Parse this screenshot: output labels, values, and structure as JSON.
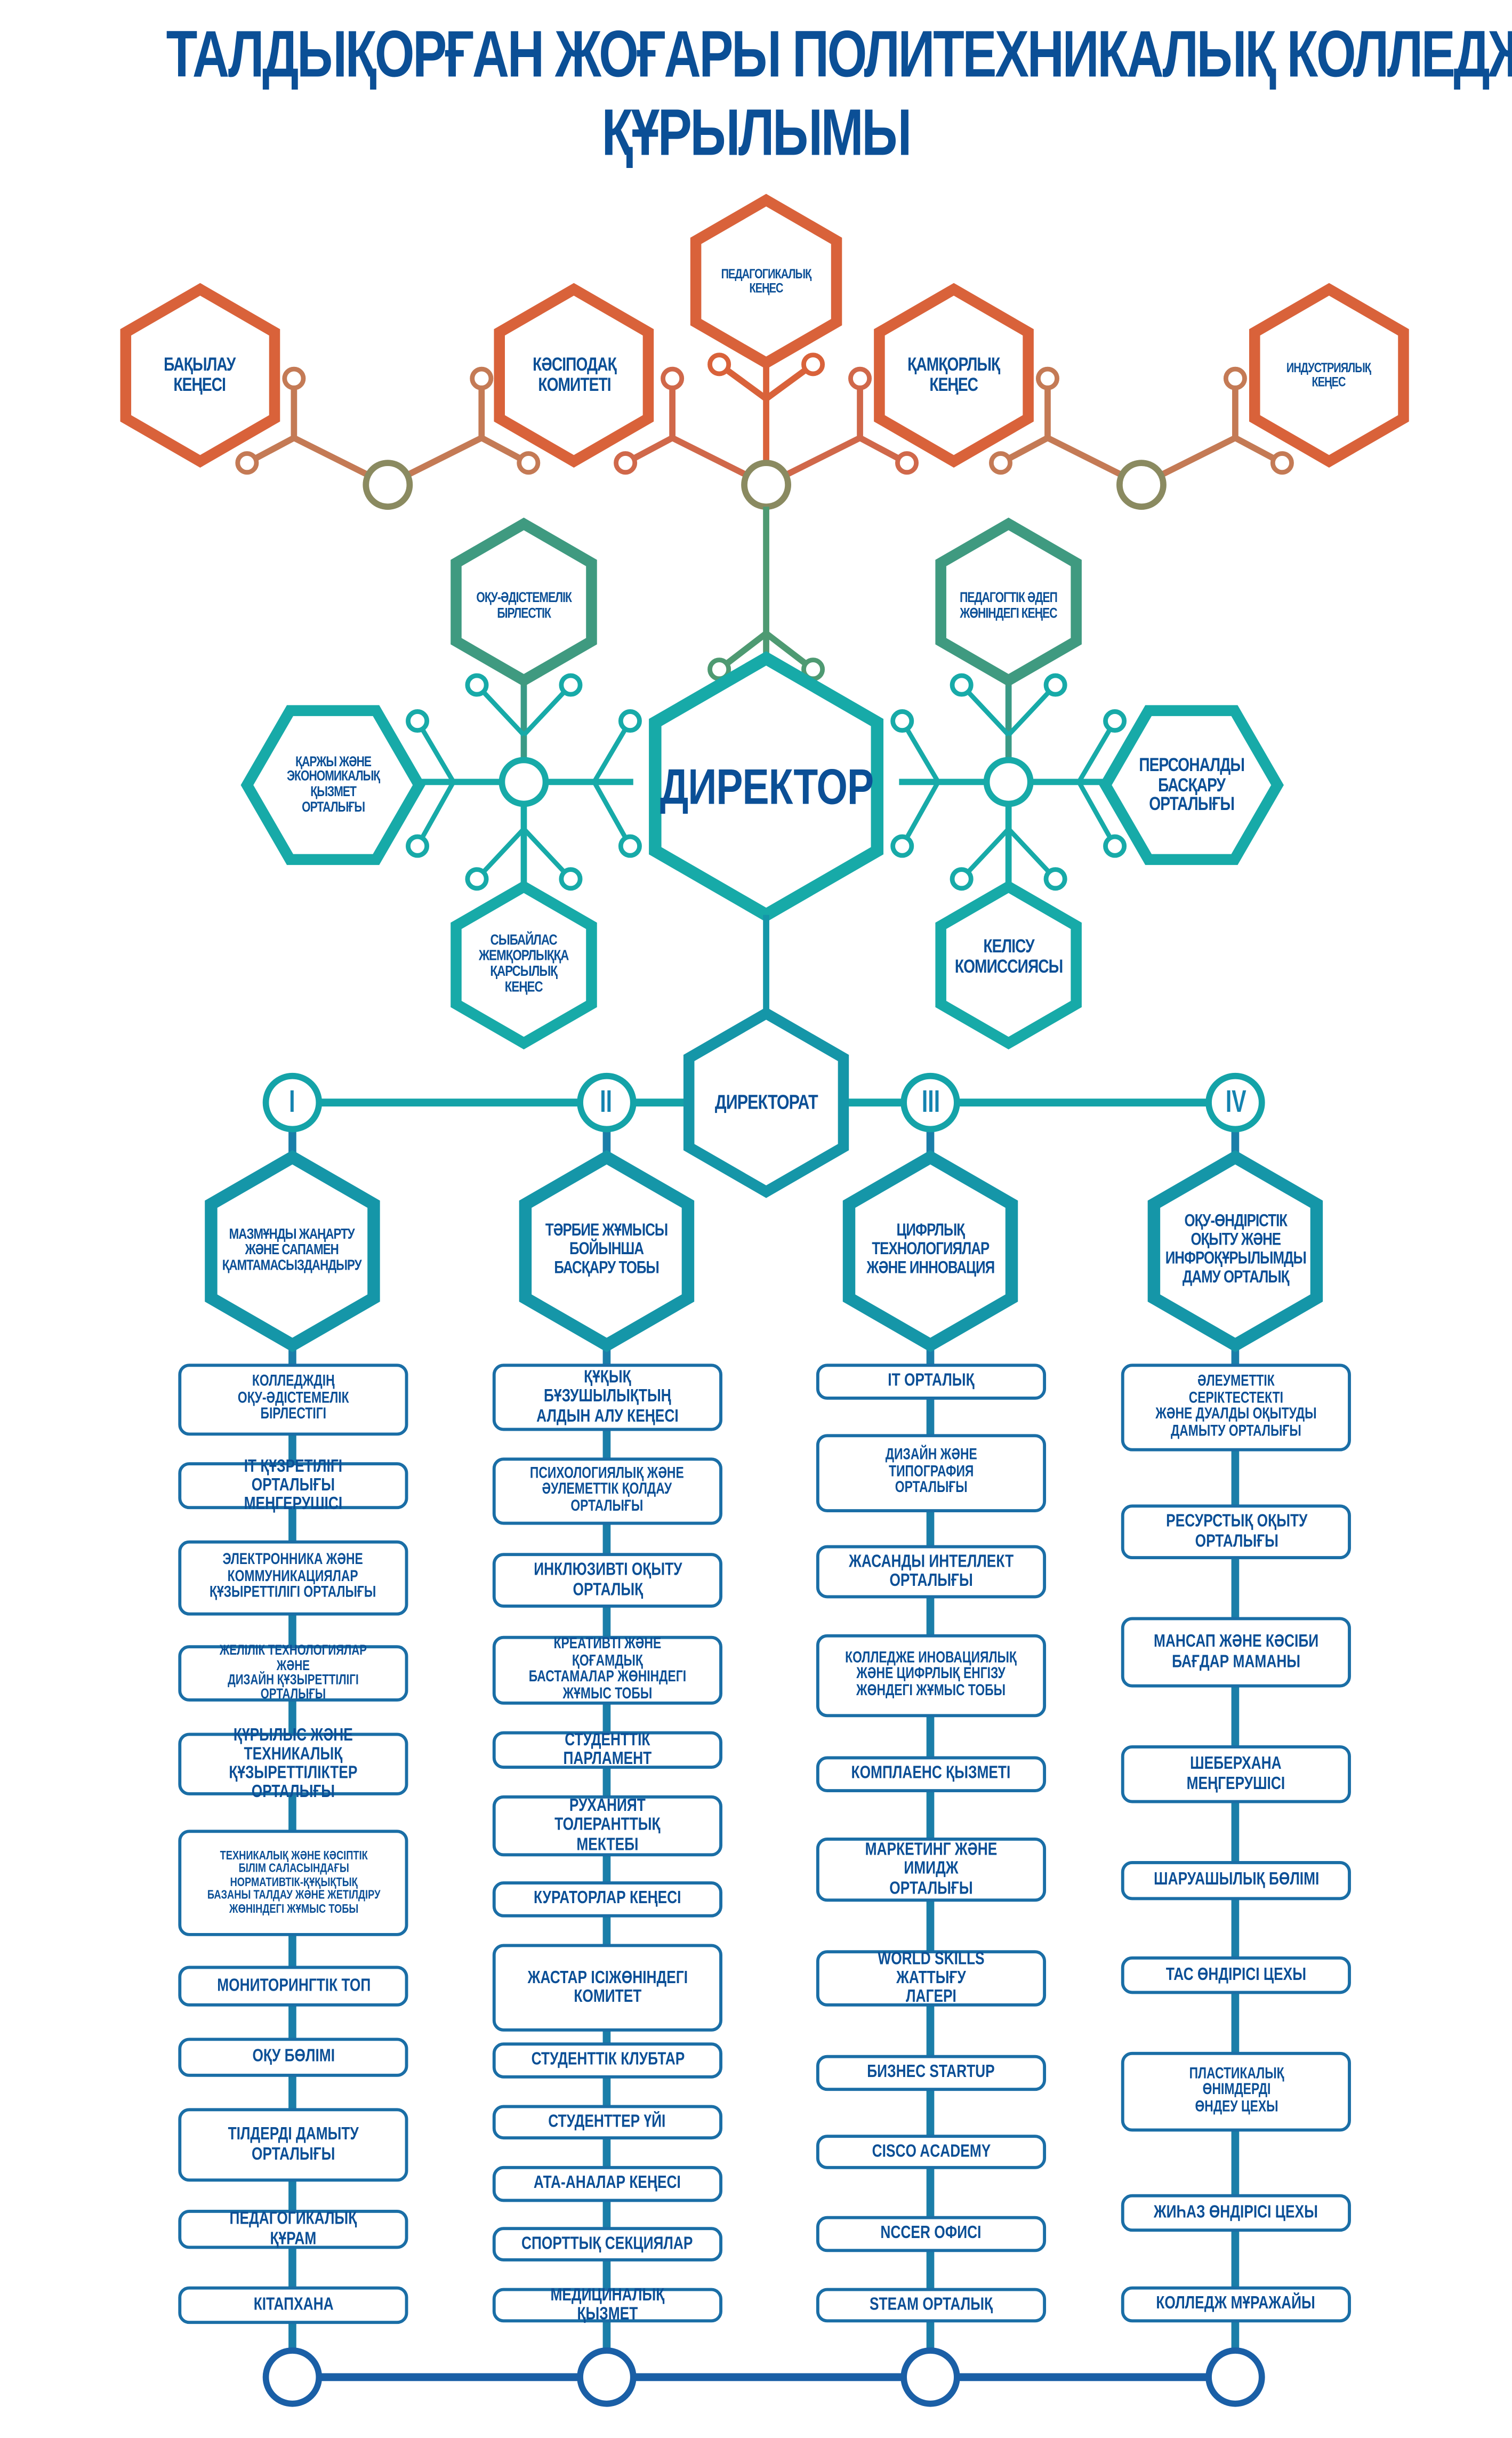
{
  "title": {
    "line1": "ТАЛДЫҚОРҒАН ЖОҒАРЫ ПОЛИТЕХНИКАЛЫҚ КОЛЛЕДЖІ",
    "line2": "ҚҰРЫЛЫМЫ"
  },
  "colors": {
    "title": "#0b4f96",
    "orange": "#d9623a",
    "green": "#4e9a72",
    "teal": "#17aaa8",
    "blue": "#1a6ea6"
  },
  "top_councils": [
    "БАҚЫЛАУ\nКЕҢЕСІ",
    "КӘСІПОДАҚ\nКОМИТЕТІ",
    "ПЕДАГОГИКАЛЫҚ\nКЕҢЕС",
    "ҚАМҚОРЛЫҚ\nКЕҢЕС",
    "ИНДУСТРИЯЛЫҚ\nКЕҢЕС"
  ],
  "director": "ДИРЕКТОР",
  "left_units": [
    "ОҚУ-ӘДІСТЕМЕЛІК\nБІРЛЕСТІК",
    "ҚАРЖЫ ЖӘНЕ\nЭКОНОМИКАЛЫҚ\nҚЫЗМЕТ\nОРТАЛЫҒЫ",
    "СЫБАЙЛАС\nЖЕМҚОРЛЫҚҚА\nҚАРСЫЛЫҚ\nКЕҢЕС"
  ],
  "right_units": [
    "ПЕДАГОГТІК ӘДЕП\nЖӨНІНДЕГІ КЕҢЕС",
    "ПЕРСОНАЛДЫ\nБАСҚАРУ\nОРТАЛЫҒЫ",
    "КЕЛІСУ\nКОМИССИЯСЫ"
  ],
  "directorate": "ДИРЕКТОРАТ",
  "columns": [
    {
      "numeral": "I",
      "head": "МАЗМҰНДЫ ЖАҢАРТУ\nЖӘНЕ САПАМЕН\nҚАМТАМАСЫЗДАНДЫРУ",
      "items": [
        "КОЛЛЕДЖДІҢ\nОҚУ-ӘДІСТЕМЕЛІК\nБІРЛЕСТІГІ",
        "IT ҚҰЗРЕТІЛІГІ ОРТАЛЫҒЫ\nМЕҢГЕРУШІСІ",
        "ЭЛЕКТРОННИКА ЖӘНЕ\nКОММУНИКАЦИЯЛАР\nҚҰЗЫРЕТТІЛІГІ ОРТАЛЫҒЫ",
        "ЖЕЛІЛІК ТЕХНОЛОГИЯЛАР ЖӘНЕ\nДИЗАЙН ҚҰЗЫРЕТТІЛІГІ ОРТАЛЫҒЫ",
        "ҚҰРЫЛЫС ЖӘНЕ ТЕХНИКАЛЫҚ\nҚҰЗЫРЕТТІЛІКТЕР ОРТАЛЫҒЫ",
        "ТЕХНИКАЛЫҚ ЖӘНЕ КӘСІПТІК\nБІЛІМ САЛАСЫНДАҒЫ\nНОРМАТИВТІК-ҚҰҚЫҚТЫҚ\nБАЗАНЫ ТАЛДАУ ЖӘНЕ ЖЕТІЛДІРУ\nЖӨНІНДЕГІ ЖҰМЫС ТОБЫ",
        "МОНИТОРИНГТІК ТОП",
        "ОҚУ БӨЛІМІ",
        "ТІЛДЕРДІ ДАМЫТУ\nОРТАЛЫҒЫ",
        "ПЕДАГОГИКАЛЫҚ ҚҰРАМ",
        "КІТАПХАНА"
      ]
    },
    {
      "numeral": "II",
      "head": "ТӘРБИЕ ЖҰМЫСЫ\nБОЙЫНША\nБАСҚАРУ ТОБЫ",
      "items": [
        "ҚҰҚЫҚ БҰЗУШЫЛЫҚТЫҢ\nАЛДЫН АЛУ КЕҢЕСІ",
        "ПСИХОЛОГИЯЛЫҚ ЖӘНЕ\nӘУЛЕМЕТТІК ҚОЛДАУ\nОРТАЛЫҒЫ",
        "ИНКЛЮЗИВТІ ОҚЫТУ\nОРТАЛЫҚ",
        "КРЕАТИВТІ ЖӘНЕ ҚОҒАМДЫҚ\nБАСТАМАЛАР ЖӨНІНДЕГІ\nЖҰМЫС ТОБЫ",
        "СТУДЕНТТІК ПАРЛАМЕНТ",
        "РУХАНИЯТ ТОЛЕРАНТТЫҚ\nМЕКТЕБІ",
        "КУРАТОРЛАР КЕҢЕСІ",
        "ЖАСТАР ІСІЖӨНІНДЕГІ\nКОМИТЕТ",
        "СТУДЕНТТІК КЛУБТАР",
        "СТУДЕНТТЕР ҮЙІ",
        "АТА-АНАЛАР КЕҢЕСІ",
        "СПОРТТЫҚ СЕКЦИЯЛАР",
        "МЕДИЦИНАЛЫҚ ҚЫЗМЕТ"
      ]
    },
    {
      "numeral": "III",
      "head": "ЦИФРЛЫҚ\nТЕХНОЛОГИЯЛАР\nЖӘНЕ ИННОВАЦИЯ",
      "items": [
        "IT ОРТАЛЫҚ",
        "ДИЗАЙН ЖӘНЕ\nТИПОГРАФИЯ\nОРТАЛЫҒЫ",
        "ЖАСАНДЫ ИНТЕЛЛЕКТ\nОРТАЛЫҒЫ",
        "КОЛЛЕДЖЕ ИНОВАЦИЯЛЫҚ\nЖӘНЕ ЦИФРЛЫҚ ЕНГІЗУ\nЖӨНДЕГІ ЖҰМЫС ТОБЫ",
        "КОМПЛАЕНС ҚЫЗМЕТІ",
        "МАРКЕТИНГ ЖӘНЕ ИМИДЖ\nОРТАЛЫҒЫ",
        "WORLD SKILLS ЖАТТЫҒУ\nЛАГЕРІ",
        "БИЗНЕС STARTUP",
        "CISCO ACADEMY",
        "NCCER ОФИСІ",
        "STEAM ОРТАЛЫҚ"
      ]
    },
    {
      "numeral": "IV",
      "head": "ОҚУ-ӨНДІРІСТІК\nОҚЫТУ ЖӘНЕ\nИНФРОҚҰРЫЛЫМДЫ\nДАМУ ОРТАЛЫҚ",
      "items": [
        "ӘЛЕУМЕТТІК СЕРІКТЕСТЕКТІ\nЖӘНЕ ДУАЛДЫ ОҚЫТУДЫ\nДАМЫТУ ОРТАЛЫҒЫ",
        "РЕСУРСТЫҚ ОҚЫТУ\nОРТАЛЫҒЫ",
        "МАНСАП ЖӘНЕ КӘСІБИ\nБАҒДАР МАМАНЫ",
        "ШЕБЕРХАНА\nМЕҢГЕРУШІСІ",
        "ШАРУАШЫЛЫҚ БӨЛІМІ",
        "ТАС ӨНДІРІСІ ЦЕХЫ",
        "ПЛАСТИКАЛЫҚ\nӨНІМДЕРДІ\nӨНДЕУ ЦЕХЫ",
        "ЖИҺАЗ ӨНДІРІСІ ЦЕХЫ",
        "КОЛЛЕДЖ МҰРАЖАЙЫ"
      ]
    }
  ]
}
